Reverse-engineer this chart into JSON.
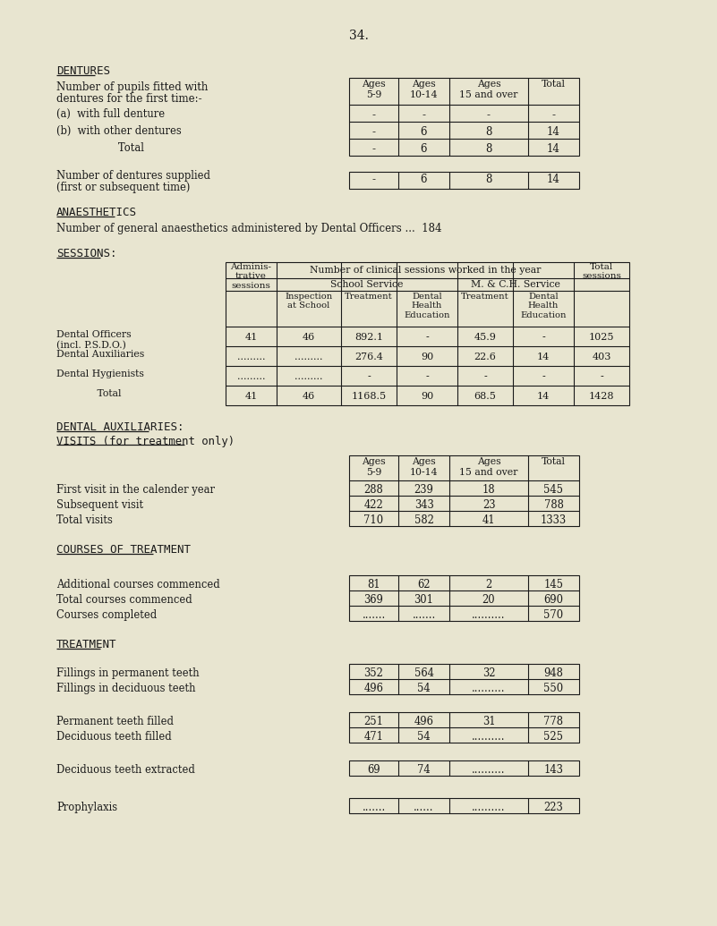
{
  "page_number": "34.",
  "bg_color": "#e8e5d0",
  "text_color": "#1a1a1a",
  "dentures_table_headers": [
    "Ages\n5-9",
    "Ages\n10-14",
    "Ages\n15 and over",
    "Total"
  ],
  "dentures_rows": [
    [
      "(a)  with full denture",
      "-",
      "-",
      "-",
      "-"
    ],
    [
      "(b)  with other dentures",
      "-",
      "6",
      "8",
      "14"
    ],
    [
      "Total",
      "-",
      "6",
      "8",
      "14"
    ]
  ],
  "dentures_supplied_row": [
    "-",
    "6",
    "8",
    "14"
  ],
  "anaesthetics_text": "Number of general anaesthetics administered by Dental Officers ...  184",
  "sessions_data_rows": [
    [
      "Dental Officers\n(incl. P.S.D.O.)",
      "41",
      "46",
      "892.1",
      "-",
      "45.9",
      "-",
      "1025"
    ],
    [
      "Dental Auxiliaries",
      ".........",
      ".........",
      "276.4",
      "90",
      "22.6",
      "14",
      "403"
    ],
    [
      "Dental Hygienists",
      ".........",
      ".........",
      "-",
      "-",
      "-",
      "-",
      "-"
    ],
    [
      "Total",
      "41",
      "46",
      "1168.5",
      "90",
      "68.5",
      "14",
      "1428"
    ]
  ],
  "visits_rows": [
    [
      "First visit in the calender year",
      "288",
      "239",
      "18",
      "545"
    ],
    [
      "Subsequent visit",
      "422",
      "343",
      "23",
      "788"
    ],
    [
      "Total visits",
      "710",
      "582",
      "41",
      "1333"
    ]
  ],
  "courses_rows": [
    [
      "Additional courses commenced",
      "81",
      "62",
      "2",
      "145"
    ],
    [
      "Total courses commenced",
      "369",
      "301",
      "20",
      "690"
    ],
    [
      "Courses completed",
      ".......",
      ".......",
      "..........",
      "570"
    ]
  ],
  "fillings_rows": [
    [
      "Fillings in permanent teeth",
      "352",
      "564",
      "32",
      "948"
    ],
    [
      "Fillings in deciduous teeth",
      "496",
      "54",
      "..........",
      "550"
    ]
  ],
  "filled_rows": [
    [
      "Permanent teeth filled",
      "251",
      "496",
      "31",
      "778"
    ],
    [
      "Deciduous teeth filled",
      "471",
      "54",
      "..........",
      "525"
    ]
  ],
  "extracted_rows": [
    [
      "Deciduous teeth extracted",
      "69",
      "74",
      "..........",
      "143"
    ]
  ],
  "prophylaxis_rows": [
    [
      "Prophylaxis",
      ".......",
      "......",
      "..........",
      "223"
    ]
  ]
}
